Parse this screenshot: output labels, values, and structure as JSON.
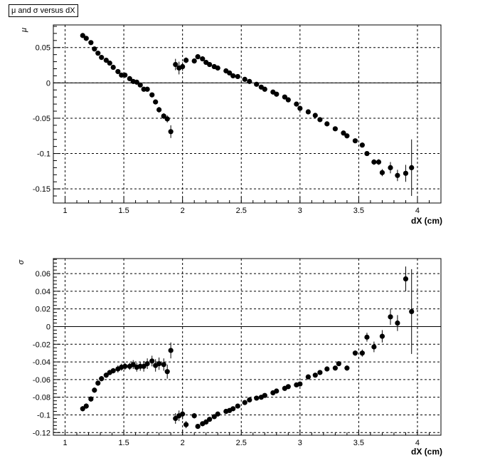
{
  "window": {
    "title": "μ and σ versus dX"
  },
  "chart_data": [
    {
      "type": "scatter",
      "title": "μ and σ versus dX",
      "xlabel": "dX (cm)",
      "ylabel": "μ",
      "xlim": [
        0.9,
        4.2
      ],
      "ylim": [
        -0.17,
        0.082
      ],
      "grid": true,
      "zero_line": true,
      "xticks": [
        1,
        1.5,
        2,
        2.5,
        3,
        3.5,
        4
      ],
      "xtick_labels": [
        "1",
        "1.5",
        "2",
        "2.5",
        "3",
        "3.5",
        "4"
      ],
      "yticks": [
        0.05,
        0,
        -0.05,
        -0.1,
        -0.15
      ],
      "ytick_labels": [
        "0.05",
        "0",
        "-0.05",
        "-0.1",
        "-0.15"
      ],
      "points": [
        [
          1.15,
          0.067,
          0.001
        ],
        [
          1.18,
          0.063,
          0.001
        ],
        [
          1.22,
          0.057,
          0.001
        ],
        [
          1.25,
          0.048,
          0.001
        ],
        [
          1.28,
          0.042,
          0.001
        ],
        [
          1.31,
          0.036,
          0.001
        ],
        [
          1.35,
          0.032,
          0.001
        ],
        [
          1.38,
          0.028,
          0.001
        ],
        [
          1.41,
          0.022,
          0.001
        ],
        [
          1.45,
          0.016,
          0.001
        ],
        [
          1.48,
          0.011,
          0.001
        ],
        [
          1.51,
          0.011,
          0.001
        ],
        [
          1.55,
          0.006,
          0.002
        ],
        [
          1.58,
          0.002,
          0.002
        ],
        [
          1.61,
          0.001,
          0.002
        ],
        [
          1.64,
          -0.003,
          0.002
        ],
        [
          1.67,
          -0.009,
          0.003
        ],
        [
          1.7,
          -0.009,
          0.003
        ],
        [
          1.74,
          -0.017,
          0.003
        ],
        [
          1.77,
          -0.027,
          0.003
        ],
        [
          1.8,
          -0.038,
          0.004
        ],
        [
          1.84,
          -0.047,
          0.004
        ],
        [
          1.87,
          -0.051,
          0.005
        ],
        [
          1.9,
          -0.069,
          0.009
        ],
        [
          1.94,
          0.026,
          0.008
        ],
        [
          1.97,
          0.021,
          0.009
        ],
        [
          2.0,
          0.023,
          0.006
        ],
        [
          2.03,
          0.032,
          0.004
        ],
        [
          2.1,
          0.031,
          0.002
        ],
        [
          2.13,
          0.037,
          0.001
        ],
        [
          2.17,
          0.034,
          0.001
        ],
        [
          2.2,
          0.029,
          0.001
        ],
        [
          2.23,
          0.026,
          0.001
        ],
        [
          2.27,
          0.023,
          0.001
        ],
        [
          2.3,
          0.021,
          0.001
        ],
        [
          2.37,
          0.017,
          0.001
        ],
        [
          2.4,
          0.014,
          0.001
        ],
        [
          2.43,
          0.01,
          0.001
        ],
        [
          2.47,
          0.009,
          0.001
        ],
        [
          2.53,
          0.005,
          0.001
        ],
        [
          2.57,
          0.002,
          0.001
        ],
        [
          2.63,
          -0.002,
          0.001
        ],
        [
          2.67,
          -0.006,
          0.001
        ],
        [
          2.7,
          -0.009,
          0.001
        ],
        [
          2.77,
          -0.013,
          0.001
        ],
        [
          2.8,
          -0.016,
          0.001
        ],
        [
          2.87,
          -0.02,
          0.001
        ],
        [
          2.9,
          -0.024,
          0.001
        ],
        [
          2.97,
          -0.03,
          0.001
        ],
        [
          3.0,
          -0.036,
          0.001
        ],
        [
          3.07,
          -0.041,
          0.001
        ],
        [
          3.13,
          -0.046,
          0.001
        ],
        [
          3.17,
          -0.052,
          0.001
        ],
        [
          3.23,
          -0.058,
          0.001
        ],
        [
          3.3,
          -0.065,
          0.001
        ],
        [
          3.37,
          -0.071,
          0.001
        ],
        [
          3.4,
          -0.075,
          0.001
        ],
        [
          3.47,
          -0.082,
          0.001
        ],
        [
          3.53,
          -0.088,
          0.001
        ],
        [
          3.57,
          -0.1,
          0.002
        ],
        [
          3.63,
          -0.112,
          0.004
        ],
        [
          3.67,
          -0.112,
          0.004
        ],
        [
          3.7,
          -0.127,
          0.005
        ],
        [
          3.77,
          -0.12,
          0.008
        ],
        [
          3.83,
          -0.131,
          0.008
        ],
        [
          3.9,
          -0.128,
          0.012
        ],
        [
          3.95,
          -0.12,
          0.04
        ]
      ]
    },
    {
      "type": "scatter",
      "xlabel": "dX (cm)",
      "ylabel": "σ",
      "xlim": [
        0.9,
        4.2
      ],
      "ylim": [
        -0.123,
        0.077
      ],
      "grid": true,
      "zero_line": true,
      "xticks": [
        1,
        1.5,
        2,
        2.5,
        3,
        3.5,
        4
      ],
      "xtick_labels": [
        "1",
        "1.5",
        "2",
        "2.5",
        "3",
        "3.5",
        "4"
      ],
      "yticks": [
        0.06,
        0.04,
        0.02,
        0,
        -0.02,
        -0.04,
        -0.06,
        -0.08,
        -0.1,
        -0.12
      ],
      "ytick_labels": [
        "0.06",
        "0.04",
        "0.02",
        "0",
        "-0.02",
        "-0.04",
        "-0.06",
        "-0.08",
        "-0.1",
        "-0.12"
      ],
      "points": [
        [
          1.15,
          -0.093,
          0.003
        ],
        [
          1.18,
          -0.09,
          0.003
        ],
        [
          1.22,
          -0.082,
          0.003
        ],
        [
          1.25,
          -0.072,
          0.003
        ],
        [
          1.28,
          -0.064,
          0.003
        ],
        [
          1.31,
          -0.059,
          0.003
        ],
        [
          1.35,
          -0.055,
          0.003
        ],
        [
          1.38,
          -0.052,
          0.003
        ],
        [
          1.41,
          -0.05,
          0.003
        ],
        [
          1.45,
          -0.048,
          0.004
        ],
        [
          1.48,
          -0.046,
          0.004
        ],
        [
          1.51,
          -0.045,
          0.004
        ],
        [
          1.55,
          -0.045,
          0.004
        ],
        [
          1.58,
          -0.043,
          0.005
        ],
        [
          1.61,
          -0.046,
          0.005
        ],
        [
          1.64,
          -0.045,
          0.005
        ],
        [
          1.67,
          -0.045,
          0.006
        ],
        [
          1.7,
          -0.042,
          0.006
        ],
        [
          1.74,
          -0.039,
          0.006
        ],
        [
          1.77,
          -0.044,
          0.007
        ],
        [
          1.8,
          -0.042,
          0.007
        ],
        [
          1.84,
          -0.043,
          0.007
        ],
        [
          1.87,
          -0.051,
          0.008
        ],
        [
          1.9,
          -0.027,
          0.009
        ],
        [
          1.94,
          -0.104,
          0.006
        ],
        [
          1.97,
          -0.101,
          0.006
        ],
        [
          2.0,
          -0.099,
          0.006
        ],
        [
          2.03,
          -0.111,
          0.004
        ],
        [
          2.1,
          -0.101,
          0.003
        ],
        [
          2.13,
          -0.113,
          0.002
        ],
        [
          2.17,
          -0.11,
          0.002
        ],
        [
          2.2,
          -0.108,
          0.002
        ],
        [
          2.23,
          -0.105,
          0.002
        ],
        [
          2.27,
          -0.102,
          0.002
        ],
        [
          2.3,
          -0.099,
          0.002
        ],
        [
          2.37,
          -0.096,
          0.002
        ],
        [
          2.4,
          -0.095,
          0.002
        ],
        [
          2.43,
          -0.093,
          0.002
        ],
        [
          2.47,
          -0.09,
          0.002
        ],
        [
          2.53,
          -0.086,
          0.002
        ],
        [
          2.57,
          -0.083,
          0.002
        ],
        [
          2.63,
          -0.081,
          0.002
        ],
        [
          2.67,
          -0.08,
          0.002
        ],
        [
          2.7,
          -0.078,
          0.002
        ],
        [
          2.77,
          -0.075,
          0.002
        ],
        [
          2.8,
          -0.073,
          0.002
        ],
        [
          2.87,
          -0.07,
          0.002
        ],
        [
          2.9,
          -0.068,
          0.002
        ],
        [
          2.97,
          -0.066,
          0.002
        ],
        [
          3.0,
          -0.065,
          0.002
        ],
        [
          3.07,
          -0.057,
          0.002
        ],
        [
          3.13,
          -0.055,
          0.002
        ],
        [
          3.17,
          -0.052,
          0.002
        ],
        [
          3.23,
          -0.048,
          0.002
        ],
        [
          3.3,
          -0.047,
          0.002
        ],
        [
          3.33,
          -0.042,
          0.002
        ],
        [
          3.4,
          -0.047,
          0.003
        ],
        [
          3.47,
          -0.03,
          0.003
        ],
        [
          3.53,
          -0.03,
          0.004
        ],
        [
          3.57,
          -0.012,
          0.005
        ],
        [
          3.63,
          -0.023,
          0.006
        ],
        [
          3.7,
          -0.011,
          0.007
        ],
        [
          3.77,
          0.011,
          0.009
        ],
        [
          3.83,
          0.004,
          0.009
        ],
        [
          3.9,
          0.054,
          0.014
        ],
        [
          3.95,
          0.017,
          0.048
        ]
      ]
    }
  ]
}
